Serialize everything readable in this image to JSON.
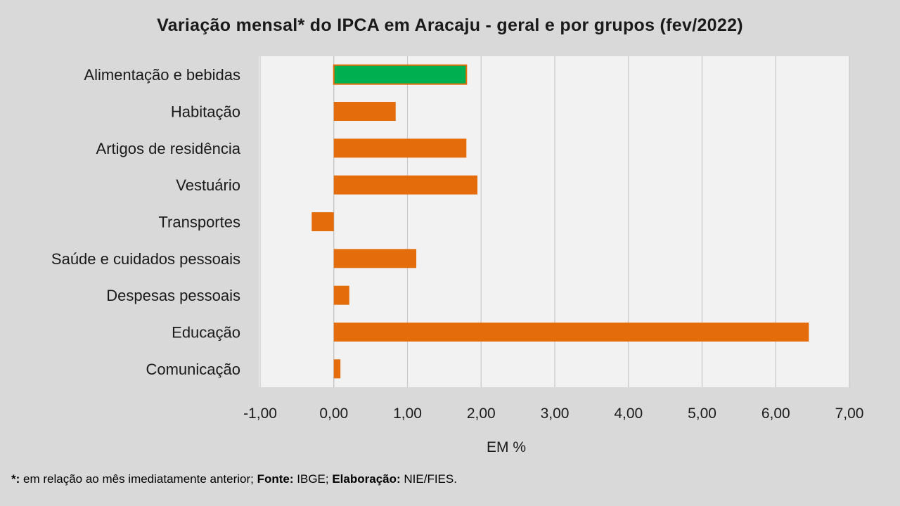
{
  "chart_data": {
    "type": "bar",
    "orientation": "horizontal",
    "title": "Variação  mensal*  do IPCA em Aracaju  - geral e por grupos  (fev/2022)",
    "categories": [
      "Alimentação e bebidas",
      "Habitação",
      "Artigos de residência",
      "Vestuário",
      "Transportes",
      "Saúde e cuidados pessoais",
      "Despesas pessoais",
      "Educação",
      "Comunicação"
    ],
    "values": [
      1.8,
      0.84,
      1.8,
      1.95,
      -0.3,
      1.12,
      0.21,
      6.45,
      0.09
    ],
    "highlight_index": 0,
    "xlabel": "EM %",
    "ylabel": "",
    "xlim": [
      -1,
      7
    ],
    "xticks": [
      "-1,00",
      "0,00",
      "1,00",
      "2,00",
      "3,00",
      "4,00",
      "5,00",
      "6,00",
      "7,00"
    ],
    "grid": true,
    "legend": "none",
    "colors": {
      "bar": "#e46c0a",
      "highlight": "#00b050",
      "highlight_border": "#e46c0a",
      "plot_bg": "#f2f2f2",
      "page_bg": "#d9d9d9",
      "grid": "#c8c8c8"
    }
  },
  "footnote": {
    "marker": "*:",
    "text1": " em relação ao mês imediatamente  anterior; ",
    "source_label": "Fonte:",
    "source": " IBGE; ",
    "prep_label": "Elaboração:",
    "prep": " NIE/FIES."
  }
}
